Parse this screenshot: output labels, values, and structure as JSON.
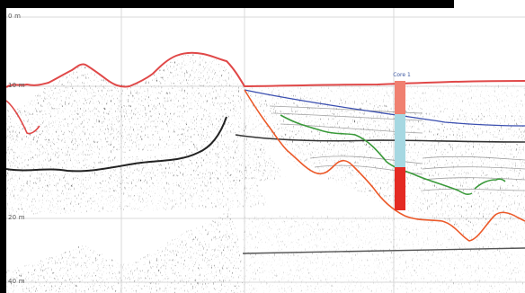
{
  "depth_axis": {
    "labels": [
      "0 m",
      "10 m",
      "20 m",
      "40 m"
    ]
  },
  "core": {
    "label": "Core 1",
    "segments": [
      {
        "color": "#f08070"
      },
      {
        "color": "#a6d8e2"
      },
      {
        "color": "#e42a23"
      }
    ]
  },
  "horizons": {
    "seafloor_color": "#e04848",
    "blue_color": "#3b4fb0",
    "green_color": "#3a9a3a",
    "orange_color": "#ec5a2a"
  }
}
